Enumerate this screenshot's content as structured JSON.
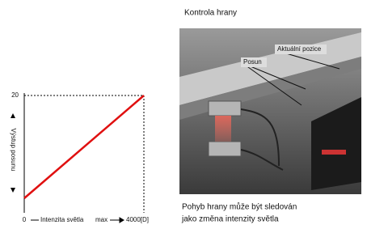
{
  "graph": {
    "y_label": "Výstup posunu",
    "y_top": "20",
    "x_start": "0",
    "x_label": "Intenzita světla",
    "x_max": "max",
    "x_end": "4000[D]"
  },
  "figure": {
    "title": "Kontrola hrany",
    "callout_current": "Aktuální pozice",
    "callout_shift": "Posun",
    "caption": [
      "Pohyb hrany může být sledován",
      "jako změna intenzity světla"
    ]
  }
}
